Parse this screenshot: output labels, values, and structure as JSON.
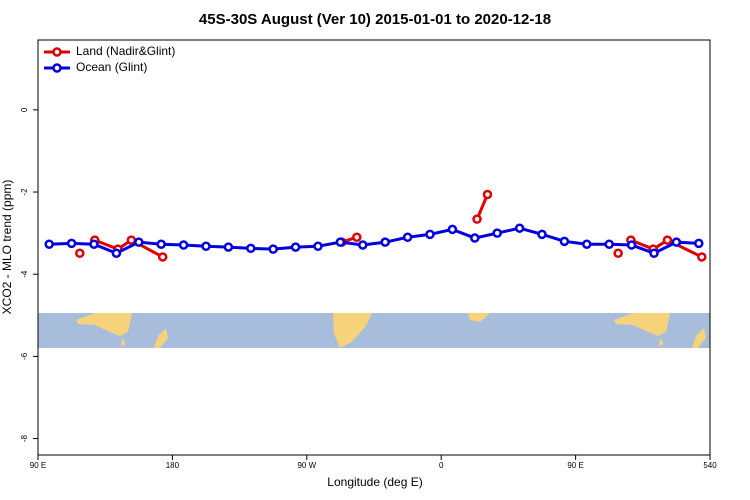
{
  "chart_data": {
    "type": "line",
    "title": "45S-30S August (Ver 10)   2015-01-01 to 2020-12-18",
    "xlabel": "Longitude (deg E)",
    "ylabel": "XCO2 - MLO trend (ppm)",
    "xlim": [
      90,
      540
    ],
    "ylim": [
      -8.4,
      1.7
    ],
    "xticks": [
      {
        "value": 90,
        "label": "90 E"
      },
      180,
      {
        "value": 270,
        "label": "90 W"
      },
      {
        "value": 360,
        "label": "0"
      },
      {
        "value": 450,
        "label": "90 E"
      },
      540
    ],
    "yticks": [
      -8,
      -6,
      -4,
      -2,
      0
    ],
    "legend": "top-left",
    "series": [
      {
        "name": "Land (Nadir&Glint)",
        "color": "#e00000",
        "x": [
          118,
          null,
          128,
          143.5,
          152.5,
          173.5,
          null,
          293.5,
          303.5,
          null,
          384,
          391,
          null,
          478.5,
          null,
          487,
          502,
          511.5,
          534.5
        ],
        "values": [
          -3.49,
          null,
          -3.17,
          -3.39,
          -3.17,
          -3.58,
          null,
          -3.22,
          -3.1,
          null,
          -2.66,
          -2.06,
          null,
          -3.49,
          null,
          -3.17,
          -3.39,
          -3.17,
          -3.58
        ]
      },
      {
        "name": "Ocean (Glint)",
        "color": "#0000e0",
        "x": [
          97.5,
          112.5,
          127.5,
          142.5,
          157.5,
          172.5,
          187.5,
          202.5,
          217.5,
          232.5,
          247.5,
          262.5,
          277.5,
          292.5,
          307.5,
          322.5,
          337.5,
          352.5,
          367.5,
          382.5,
          397.5,
          412.5,
          427.5,
          442.5,
          457.5,
          472.5,
          487.5,
          502.5,
          517.5,
          532.5
        ],
        "values": [
          -3.27,
          -3.25,
          -3.27,
          -3.49,
          -3.22,
          -3.27,
          -3.29,
          -3.32,
          -3.34,
          -3.37,
          -3.39,
          -3.34,
          -3.32,
          -3.22,
          -3.29,
          -3.22,
          -3.1,
          -3.03,
          -2.91,
          -3.12,
          -3.0,
          -2.88,
          -3.03,
          -3.2,
          -3.27,
          -3.27,
          -3.29,
          -3.49,
          -3.22,
          -3.25
        ]
      }
    ]
  }
}
